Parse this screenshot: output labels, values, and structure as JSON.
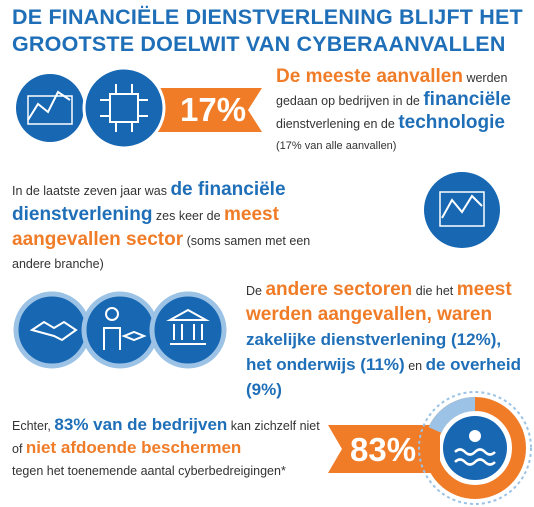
{
  "title": [
    "DE FINANCIËLE DIENSTVERLENING BLIJFT HET",
    "GROOTSTE DOELWIT VAN CYBERAANVALLEN"
  ],
  "section1": {
    "stat": "17%",
    "text": [
      "De meeste aanvallen",
      "werden gedaan op bedrijven in de",
      "financiële",
      "dienstverlening en de",
      "technologie",
      "(17% van alle aanvallen)"
    ]
  },
  "section2": {
    "text": [
      "In de laatste zeven jaar was",
      "de financiële dienstverlening",
      "zes keer de",
      "meest aangevallen sector",
      "(soms samen met een andere branche)"
    ]
  },
  "section3": {
    "text": [
      "De",
      "andere sectoren",
      "die het",
      "meest werden aangevallen, waren",
      "zakelijke dienstverlening (12%), het onderwijs (11%)",
      "en",
      "de overheid (9%)"
    ]
  },
  "section4": {
    "stat": "83%",
    "text": [
      "Echter,",
      "83% van de bedrijven",
      "kan zichzelf niet of",
      "niet afdoende beschermen",
      "tegen het toenemende aantal cyberbedreigingen*"
    ]
  }
}
